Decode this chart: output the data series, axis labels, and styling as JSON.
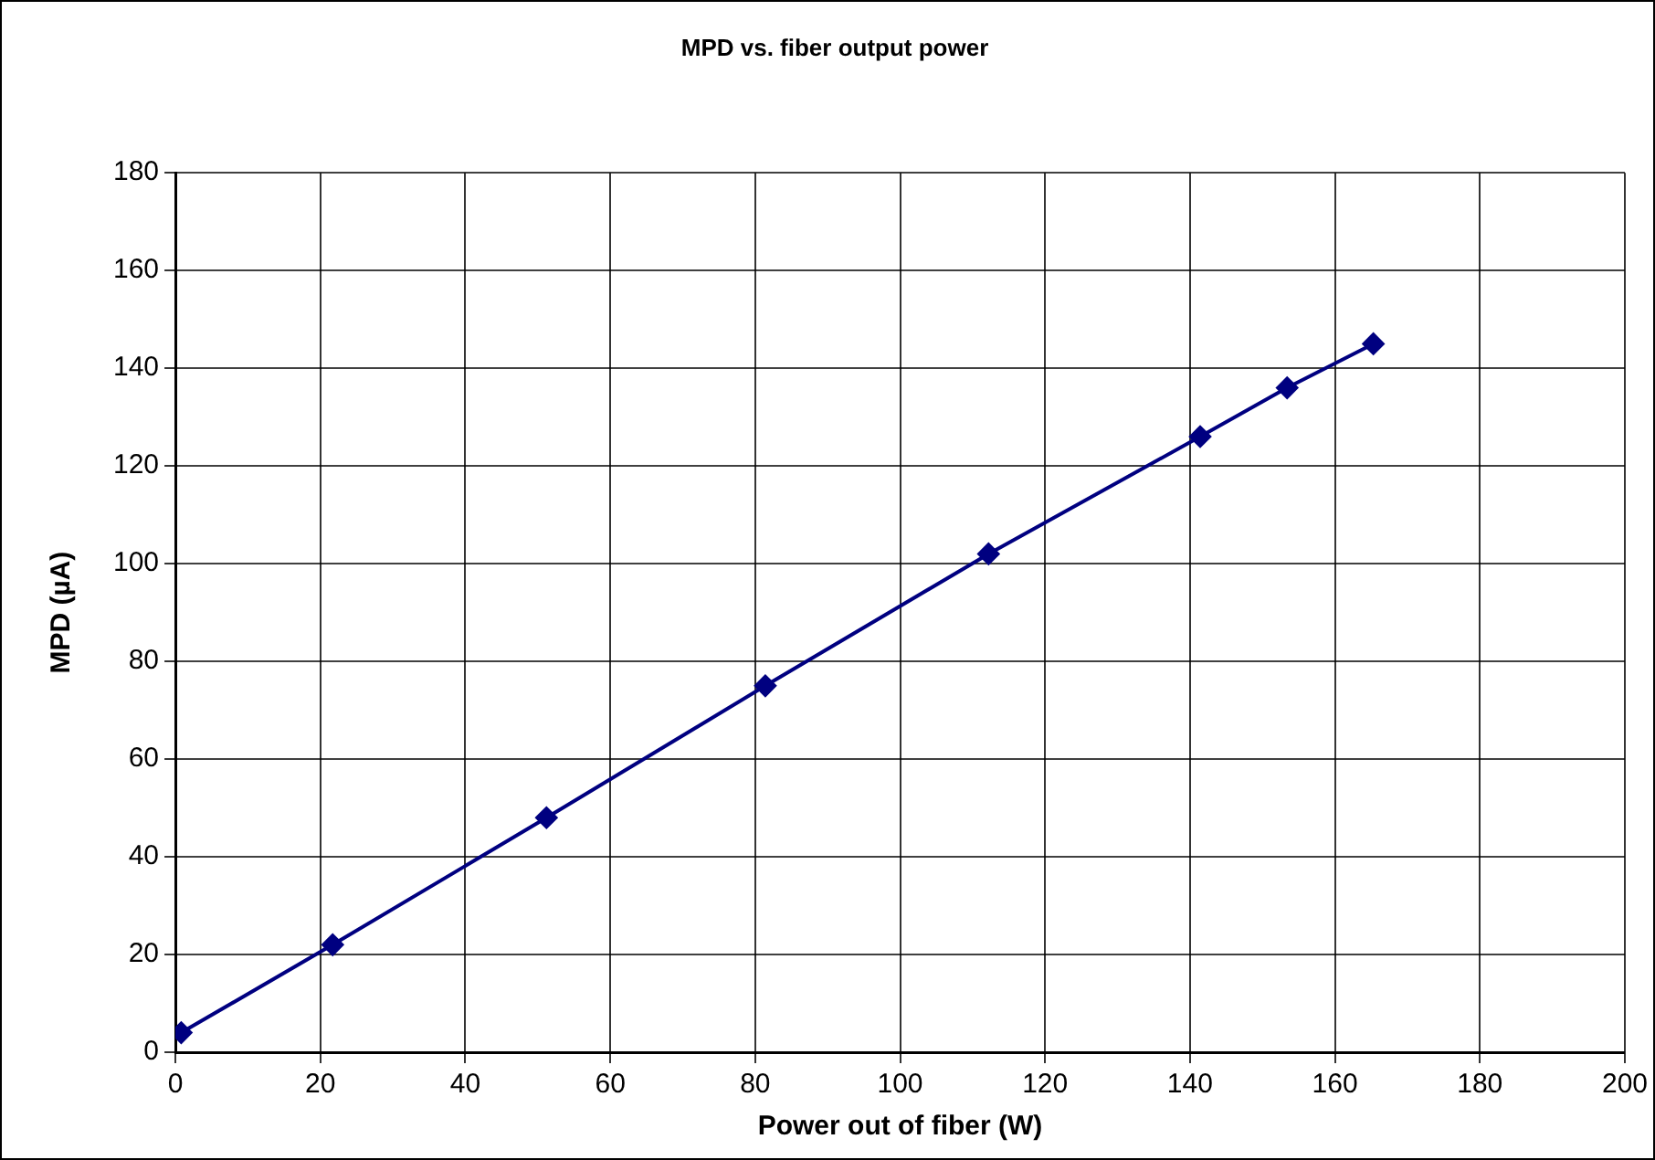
{
  "chart_data": {
    "type": "line",
    "title": "MPD vs. fiber output power",
    "xlabel": "Power out of fiber (W)",
    "ylabel": "MPD (µA)",
    "x": [
      0.8,
      21.7,
      51.2,
      81.4,
      112.2,
      141.4,
      153.4,
      165.3
    ],
    "series": [
      {
        "color": "#000080",
        "values": [
          4,
          22,
          48,
          75,
          102,
          126,
          136,
          145
        ]
      }
    ],
    "xlim": [
      0,
      200
    ],
    "xticks": [
      0,
      20,
      40,
      60,
      80,
      100,
      120,
      140,
      160,
      180,
      200
    ],
    "ylim": [
      0,
      180
    ],
    "yticks": [
      0,
      20,
      40,
      60,
      80,
      100,
      120,
      140,
      160,
      180
    ],
    "grid": true,
    "legend": false,
    "marker": "diamond",
    "line_style": "solid"
  }
}
